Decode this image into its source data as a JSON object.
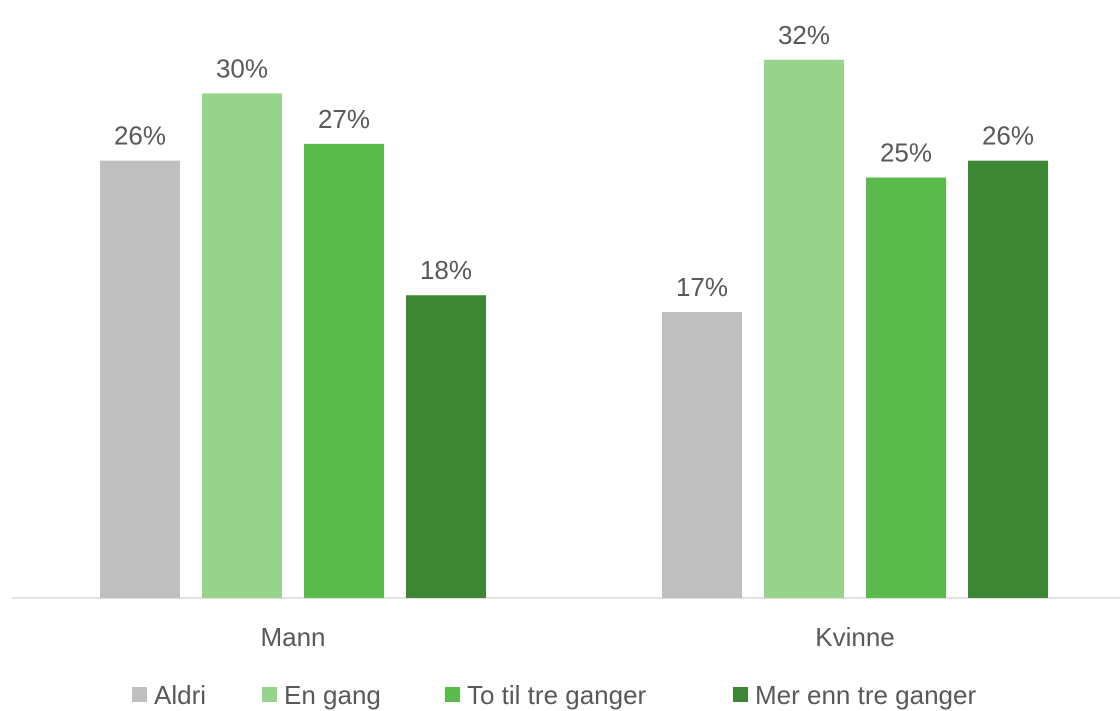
{
  "chart_data": {
    "type": "bar",
    "categories": [
      "Mann",
      "Kvinne"
    ],
    "series": [
      {
        "name": "Aldri",
        "color": "#bfbfbf",
        "values": [
          26,
          17
        ],
        "value_labels": [
          "26%",
          "17%"
        ]
      },
      {
        "name": "En gang",
        "color": "#97d38b",
        "values": [
          30,
          32
        ],
        "value_labels": [
          "30%",
          "32%"
        ]
      },
      {
        "name": "To til tre ganger",
        "color": "#5abb4c",
        "values": [
          27,
          25
        ],
        "value_labels": [
          "27%",
          "25%"
        ]
      },
      {
        "name": "Mer enn tre ganger",
        "color": "#3d8633",
        "values": [
          18,
          26
        ],
        "value_labels": [
          "18%",
          "26%"
        ]
      }
    ],
    "legend": "bottom"
  }
}
